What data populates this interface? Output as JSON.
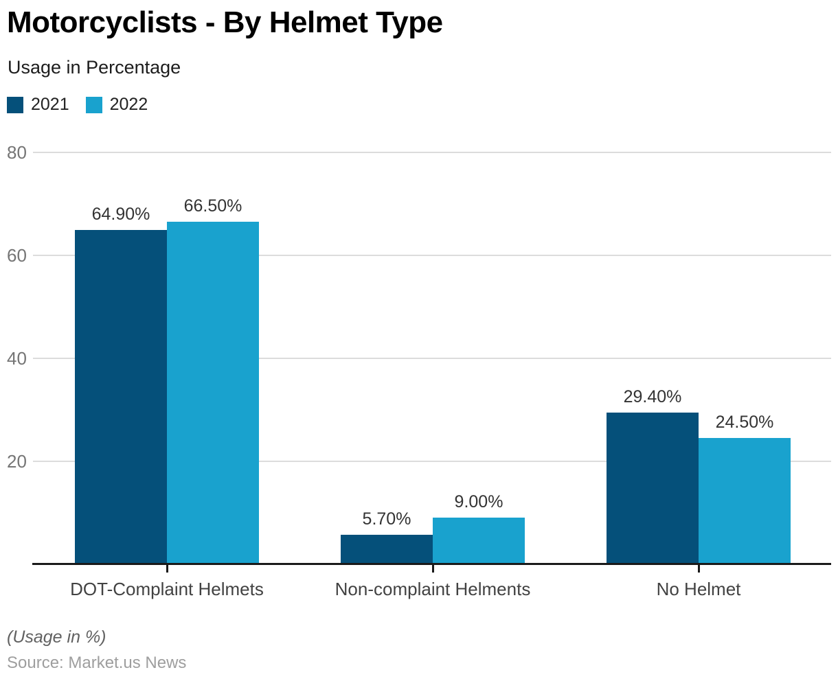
{
  "header": {
    "title": "Motorcyclists - By Helmet Type",
    "subtitle": "Usage in Percentage"
  },
  "chart_data": {
    "type": "bar",
    "title": "Motorcyclists - By Helmet Type",
    "subtitle": "Usage in Percentage",
    "categories": [
      "DOT-Complaint Helmets",
      "Non-complaint Helments",
      "No Helmet"
    ],
    "series": [
      {
        "name": "2021",
        "color": "#05507a",
        "values": [
          64.9,
          5.7,
          29.4
        ],
        "labels": [
          "64.90%",
          "5.70%",
          "29.40%"
        ]
      },
      {
        "name": "2022",
        "color": "#19a2ce",
        "values": [
          66.5,
          9.0,
          24.5
        ],
        "labels": [
          "66.50%",
          "9.00%",
          "24.50%"
        ]
      }
    ],
    "y_axis": {
      "min": 0,
      "max": 80,
      "ticks": [
        20,
        40,
        60,
        80
      ]
    },
    "grid": true,
    "legend_position": "top-left",
    "colors": {
      "grid": "#dcdcdc",
      "axis": "#1a1a1a"
    }
  },
  "footer": {
    "note": "(Usage in %)",
    "source": "Source: Market.us News"
  }
}
